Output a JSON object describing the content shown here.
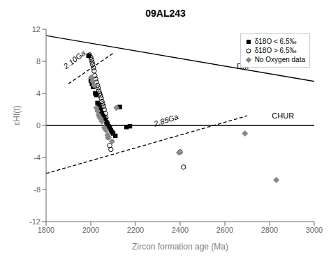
{
  "chart_data": {
    "type": "scatter",
    "title": "09AL243",
    "x_label": "Zircon formation age (Ma)",
    "y_label": "εHf(t)",
    "xlim": [
      1800,
      3000
    ],
    "ylim": [
      -12,
      12
    ],
    "xticks": [
      1800,
      2000,
      2200,
      2400,
      2600,
      2800,
      3000
    ],
    "yticks": [
      -12,
      -8,
      -4,
      0,
      4,
      8,
      12
    ],
    "grid": false,
    "legend": "upper right",
    "series": [
      {
        "name": "δ18O < 6.5‰",
        "color": "#000000",
        "marker": "square",
        "x": [
          1990,
          2000,
          2005,
          2010,
          2020,
          2025,
          2030,
          2035,
          2040,
          2045,
          2050,
          2055,
          2060,
          2065,
          2070,
          2075,
          2080,
          2085,
          2090,
          2095,
          2100,
          2110,
          2130,
          2160,
          2175
        ],
        "y": [
          8.7,
          5.6,
          5.2,
          4.8,
          4.0,
          3.8,
          2.8,
          2.5,
          2.1,
          1.8,
          1.5,
          1.2,
          0.9,
          0.7,
          0.4,
          0.2,
          -0.1,
          -0.3,
          -0.6,
          -0.8,
          -1.0,
          -1.3,
          2.3,
          -0.2,
          -0.1
        ]
      },
      {
        "name": "δ18O > 6.5‰",
        "color": "#000000",
        "marker": "open_circle",
        "x": [
          1995,
          2000,
          2003,
          2006,
          2008,
          2012,
          2015,
          2018,
          2022,
          2025,
          2030,
          2033,
          2036,
          2040,
          2043,
          2047,
          2050,
          2053,
          2057,
          2060,
          2065,
          2068,
          2072,
          2078,
          2085,
          2090,
          2400,
          2415
        ],
        "y": [
          8.8,
          8.5,
          8.2,
          7.9,
          7.6,
          7.2,
          6.8,
          6.2,
          5.8,
          5.4,
          5.0,
          4.7,
          4.3,
          4.0,
          3.7,
          3.4,
          3.0,
          2.7,
          2.4,
          2.0,
          1.5,
          1.0,
          -0.3,
          -1.5,
          -2.5,
          -3.0,
          -3.3,
          -5.2
        ]
      },
      {
        "name": "No Oxygen data",
        "color": "#888888",
        "marker": "diamond",
        "x": [
          2002,
          2008,
          2015,
          2025,
          2030,
          2035,
          2040,
          2045,
          2050,
          2060,
          2068,
          2075,
          2080,
          2095,
          2115,
          2395,
          2690,
          2830
        ],
        "y": [
          6.0,
          5.5,
          5.0,
          2.2,
          1.8,
          1.3,
          1.0,
          0.8,
          0.5,
          -0.3,
          -0.6,
          -1.2,
          -1.5,
          -2.0,
          2.2,
          -3.4,
          -1.0,
          -6.8
        ]
      }
    ],
    "lines": [
      {
        "x": [
          1800,
          3000
        ],
        "y": [
          11.2,
          5.5
        ],
        "color": "#000000",
        "line_style": "solid"
      },
      {
        "x": [
          1800,
          3000
        ],
        "y": [
          0,
          0
        ],
        "color": "#000000",
        "line_style": "solid"
      },
      {
        "x": [
          1900,
          2100
        ],
        "y": [
          5.2,
          9.0
        ],
        "color": "#000000",
        "line_style": "dashed"
      },
      {
        "x": [
          1800,
          2700
        ],
        "y": [
          -6.0,
          1.2
        ],
        "color": "#000000",
        "line_style": "dashed"
      }
    ],
    "annotations": [
      {
        "text": "DM",
        "x": 2680,
        "y": 6.8
      },
      {
        "text": "CHUR",
        "x": 2860,
        "y": 0.6
      },
      {
        "text": "2.10Ga",
        "x": 1895,
        "y": 6.8
      },
      {
        "text": "2.85Ga",
        "x": 2290,
        "y": -0.4
      }
    ]
  }
}
